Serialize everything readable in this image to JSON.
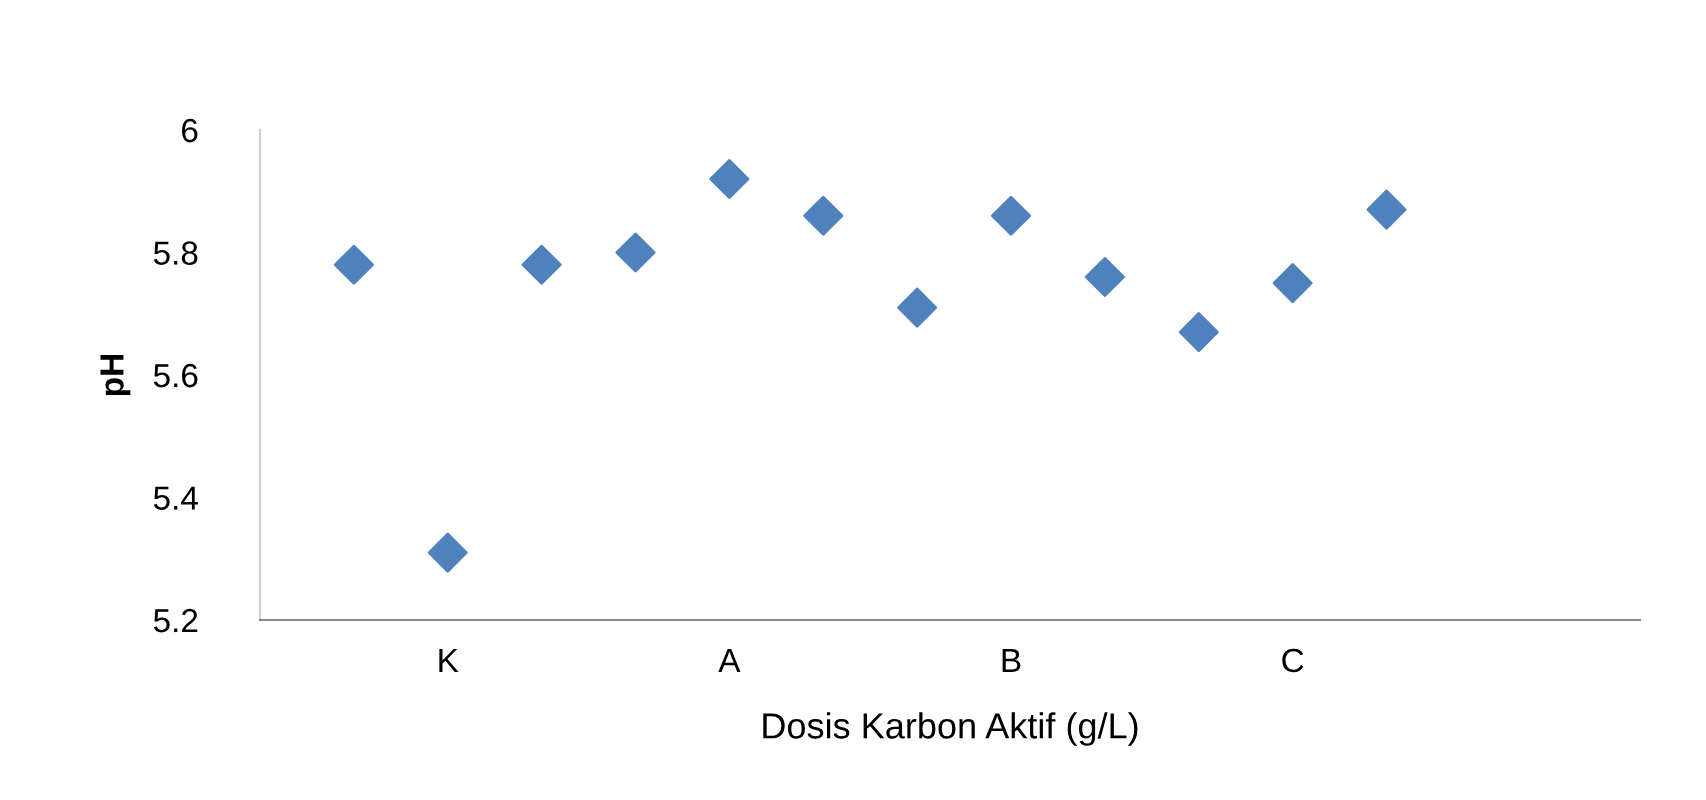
{
  "chart_data": {
    "type": "scatter",
    "xlabel": "Dosis Karbon Aktif (g/L)",
    "ylabel": "pH",
    "categories": [
      null,
      "K",
      null,
      null,
      "A",
      null,
      null,
      "B",
      null,
      null,
      "C",
      null
    ],
    "series": [
      {
        "color": "#4f81bd",
        "values": [
          5.78,
          5.31,
          5.78,
          5.8,
          5.92,
          5.86,
          5.71,
          5.86,
          5.76,
          5.67,
          5.75,
          5.87
        ]
      }
    ],
    "ylim": [
      5.2,
      6
    ],
    "yticks": [
      5.2,
      5.4,
      5.6,
      5.8,
      6
    ],
    "marker": "diamond",
    "grid": false,
    "legend": false
  }
}
